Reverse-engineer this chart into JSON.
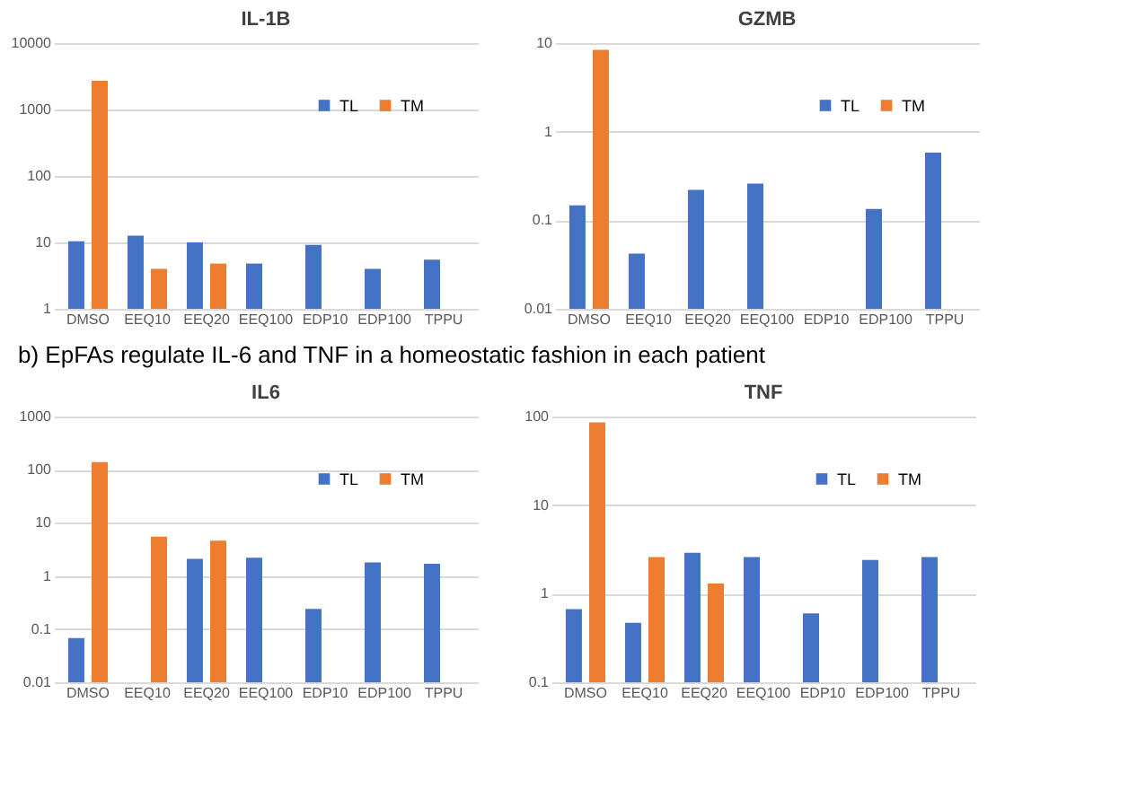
{
  "chart_data": [
    {
      "type": "bar",
      "title": "IL-1B",
      "categories": [
        "DMSO",
        "EEQ10",
        "EEQ20",
        "EEQ100",
        "EDP10",
        "EDP100",
        "TPPU"
      ],
      "log": "y",
      "ylim": [
        1,
        10000
      ],
      "yticks": [
        1,
        10,
        100,
        1000,
        10000
      ],
      "grid": "y",
      "legend": "top right",
      "series": [
        {
          "name": "TL",
          "color": "#4472c4",
          "values": [
            10.4,
            12.6,
            10,
            4.8,
            9.2,
            4.0,
            5.5
          ]
        },
        {
          "name": "TM",
          "color": "#ed7d31",
          "values": [
            2700,
            4.0,
            4.8,
            null,
            null,
            null,
            null
          ]
        }
      ]
    },
    {
      "type": "bar",
      "title": "GZMB",
      "categories": [
        "DMSO",
        "EEQ10",
        "EEQ20",
        "EEQ100",
        "EDP10",
        "EDP100",
        "TPPU"
      ],
      "log": "y",
      "ylim": [
        0.01,
        10
      ],
      "yticks": [
        0.01,
        0.1,
        1,
        10
      ],
      "grid": "y",
      "legend": "top right",
      "series": [
        {
          "name": "TL",
          "color": "#4472c4",
          "values": [
            0.147,
            0.042,
            0.22,
            0.26,
            null,
            0.134,
            0.58
          ]
        },
        {
          "name": "TM",
          "color": "#ed7d31",
          "values": [
            8.4,
            null,
            null,
            null,
            null,
            null,
            null
          ]
        }
      ]
    },
    {
      "type": "bar",
      "title": "IL6",
      "annotations": [
        "b) EpFAs regulate IL-6 and TNF in a homeostatic fashion in each patient"
      ],
      "categories": [
        "DMSO",
        "EEQ10",
        "EEQ20",
        "EEQ100",
        "EDP10",
        "EDP100",
        "TPPU"
      ],
      "log": "y",
      "ylim": [
        0.01,
        1000
      ],
      "yticks": [
        0.01,
        0.1,
        1,
        10,
        100,
        1000
      ],
      "grid": "y",
      "legend": "top right",
      "series": [
        {
          "name": "TL",
          "color": "#4472c4",
          "values": [
            0.068,
            null,
            2.1,
            2.2,
            0.24,
            1.8,
            1.7
          ]
        },
        {
          "name": "TM",
          "color": "#ed7d31",
          "values": [
            139,
            5.5,
            4.6,
            null,
            null,
            null,
            null
          ]
        }
      ]
    },
    {
      "type": "bar",
      "title": "TNF",
      "categories": [
        "DMSO",
        "EEQ10",
        "EEQ20",
        "EEQ100",
        "EDP10",
        "EDP100",
        "TPPU"
      ],
      "log": "y",
      "ylim": [
        0.1,
        100
      ],
      "yticks": [
        0.1,
        1,
        10,
        100
      ],
      "grid": "y",
      "legend": "top right",
      "series": [
        {
          "name": "TL",
          "color": "#4472c4",
          "values": [
            0.67,
            0.47,
            2.9,
            2.6,
            0.6,
            2.4,
            2.6
          ]
        },
        {
          "name": "TM",
          "color": "#ed7d31",
          "values": [
            86,
            2.6,
            1.3,
            null,
            null,
            null,
            null
          ]
        }
      ]
    }
  ]
}
